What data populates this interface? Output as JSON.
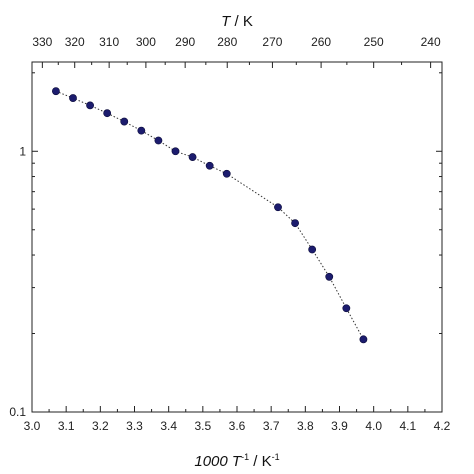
{
  "chart_data": {
    "type": "scatter",
    "title": "",
    "xlabel_bottom": {
      "prefix": "1000 T",
      "sup1": "-1",
      "middle": " / K",
      "sup2": "-1"
    },
    "xlabel_top": {
      "italic": "T",
      "rest": " / K"
    },
    "ylabel": "",
    "x_scale": "linear",
    "y_scale": "log",
    "xlim": [
      3.0,
      4.2
    ],
    "ylim": [
      0.1,
      2.2
    ],
    "x_ticks": [
      3.0,
      3.1,
      3.2,
      3.3,
      3.4,
      3.5,
      3.6,
      3.7,
      3.8,
      3.9,
      4.0,
      4.1,
      4.2
    ],
    "x_tick_labels": [
      "3.0",
      "3.1",
      "3.2",
      "3.3",
      "3.4",
      "3.5",
      "3.6",
      "3.7",
      "3.8",
      "3.9",
      "4.0",
      "4.1",
      "4.2"
    ],
    "y_ticks": [
      0.1,
      1
    ],
    "y_tick_labels": [
      "0.1",
      "1"
    ],
    "top_axis_ticks_K": [
      330,
      320,
      310,
      300,
      290,
      280,
      270,
      260,
      250,
      240
    ],
    "top_axis_tick_labels": [
      "330",
      "320",
      "310",
      "300",
      "290",
      "280",
      "270",
      "260",
      "250",
      "240"
    ],
    "series": [
      {
        "x": [
          3.07,
          3.12,
          3.17,
          3.22,
          3.27,
          3.32,
          3.37,
          3.42,
          3.47,
          3.52,
          3.57,
          3.72,
          3.77,
          3.82,
          3.87,
          3.92,
          3.97
        ],
        "y": [
          1.7,
          1.6,
          1.5,
          1.4,
          1.3,
          1.2,
          1.1,
          1.0,
          0.95,
          0.88,
          0.82,
          0.61,
          0.53,
          0.42,
          0.33,
          0.25,
          0.19
        ]
      }
    ],
    "marker_color": "#1c1c6e",
    "line_style": "dotted",
    "grid": false
  }
}
